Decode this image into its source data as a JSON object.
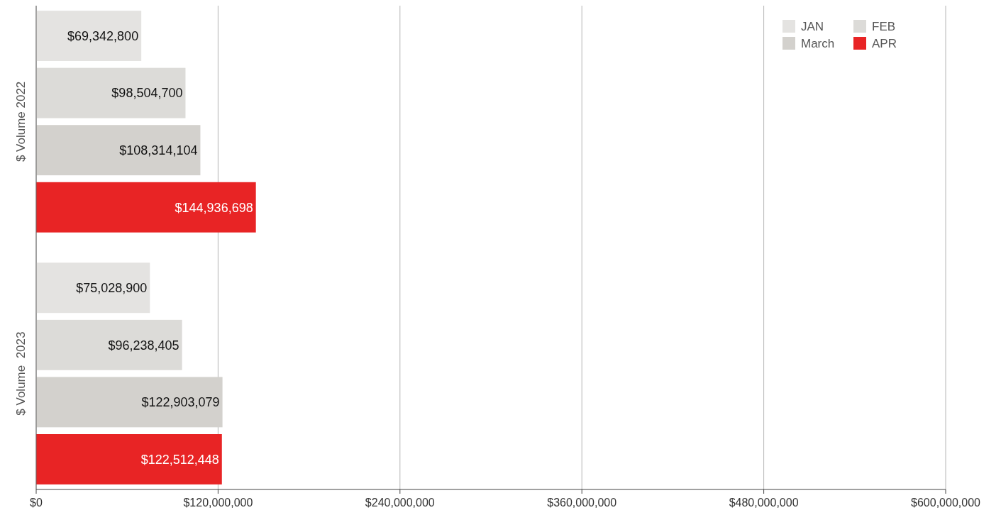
{
  "chart_data": {
    "type": "bar",
    "orientation": "horizontal",
    "categories": [
      "$ Volume 2022",
      "$ Volume  2023"
    ],
    "series": [
      {
        "name": "JAN",
        "color": "#e4e3e1",
        "values": [
          69342800,
          75028900
        ],
        "value_labels": [
          "$69,342,800",
          "$75,028,900"
        ]
      },
      {
        "name": "FEB",
        "color": "#dcdbd8",
        "values": [
          98504700,
          96238405
        ],
        "value_labels": [
          "$98,504,700",
          "$96,238,405"
        ]
      },
      {
        "name": "March",
        "color": "#d3d1cd",
        "values": [
          108314104,
          122903079
        ],
        "value_labels": [
          "$108,314,104",
          "$122,903,079"
        ]
      },
      {
        "name": "APR",
        "color": "#e82425",
        "values": [
          144936698,
          122512448
        ],
        "value_labels": [
          "$144,936,698",
          "$122,512,448"
        ]
      }
    ],
    "xlim": [
      0,
      600000000
    ],
    "xticks": [
      {
        "value": 0,
        "label": "$0"
      },
      {
        "value": 120000000,
        "label": "$120,000,000"
      },
      {
        "value": 240000000,
        "label": "$240,000,000"
      },
      {
        "value": 360000000,
        "label": "$360,000,000"
      },
      {
        "value": 480000000,
        "label": "$480,000,000"
      },
      {
        "value": 600000000,
        "label": "$600,000,000"
      }
    ],
    "grid": "x",
    "legend": "top right"
  }
}
